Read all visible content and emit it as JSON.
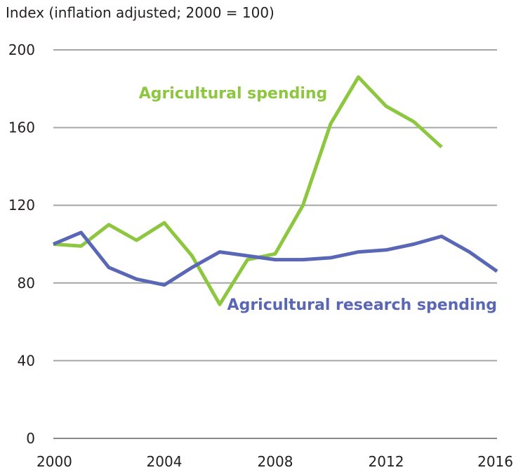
{
  "chart_data": {
    "type": "line",
    "ylabel": "Index (inflation adjusted; 2000 = 100)",
    "xlabel": "",
    "xlim": [
      2000,
      2016
    ],
    "ylim": [
      0,
      200
    ],
    "x_ticks": [
      2000,
      2004,
      2008,
      2012,
      2016
    ],
    "y_ticks": [
      0,
      40,
      80,
      120,
      160,
      200
    ],
    "grid": "horizontal",
    "series": [
      {
        "name": "Agricultural spending",
        "color": "#8dc63f",
        "x": [
          2000,
          2001,
          2002,
          2003,
          2004,
          2005,
          2006,
          2007,
          2008,
          2009,
          2010,
          2011,
          2012,
          2013,
          2014
        ],
        "values": [
          100,
          99,
          110,
          102,
          111,
          94,
          69,
          92,
          95,
          120,
          162,
          186,
          171,
          163,
          150
        ]
      },
      {
        "name": "Agricultural research spending",
        "color": "#5a67b5",
        "x": [
          2000,
          2001,
          2002,
          2003,
          2004,
          2005,
          2006,
          2007,
          2008,
          2009,
          2010,
          2011,
          2012,
          2013,
          2014,
          2015,
          2016
        ],
        "values": [
          100,
          106,
          88,
          82,
          79,
          88,
          96,
          94,
          92,
          92,
          93,
          96,
          97,
          100,
          104,
          96,
          86
        ]
      }
    ]
  }
}
